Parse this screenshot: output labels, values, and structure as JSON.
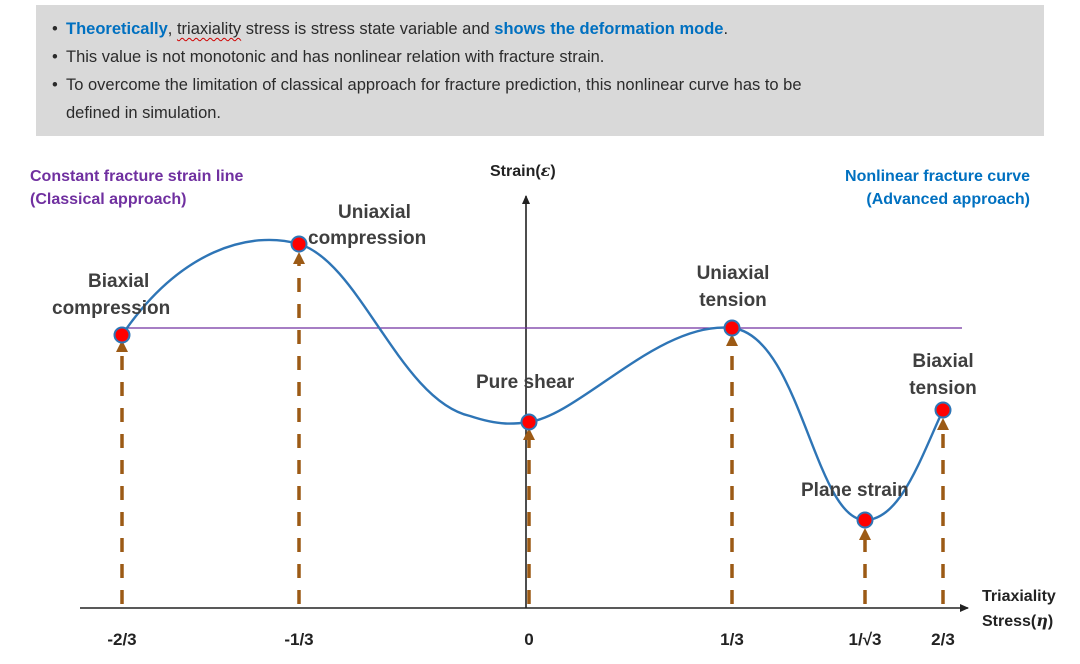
{
  "notes": {
    "b1_strong": "Theoretically",
    "b1_comma": ", ",
    "b1_misspelled": "triaxiality",
    "b1_mid": " stress is stress state variable and ",
    "b1_strong2": "shows the deformation mode",
    "b1_end": ".",
    "b2": "This value is not monotonic and has nonlinear relation with fracture strain.",
    "b3_line1": "To overcome the limitation of classical approach for fracture prediction, this nonlinear curve has to be",
    "b3_line2": "defined in simulation."
  },
  "legend": {
    "constant_line": "Constant fracture strain line",
    "classical": "(Classical approach)",
    "nonlinear_curve": "Nonlinear fracture curve",
    "advanced": "(Advanced approach)"
  },
  "axes": {
    "y_label_main": "Strain(",
    "y_label_symbol": "ε",
    "y_label_close": ")",
    "x_label_line1": "Triaxiality",
    "x_label_line2_main": "Stress(",
    "x_label_line2_symbol": "η",
    "x_label_line2_close": ")",
    "ticks": [
      "-2/3",
      "-1/3",
      "0",
      "1/3",
      "1/√3",
      "2/3"
    ]
  },
  "points": {
    "biaxial_compression_1": "Biaxial",
    "biaxial_compression_2": "compression",
    "uniaxial_compression_1": "Uniaxial",
    "uniaxial_compression_2": "compression",
    "pure_shear": "Pure shear",
    "uniaxial_tension_1": "Uniaxial",
    "uniaxial_tension_2": "tension",
    "plane_strain": "Plane strain",
    "biaxial_tension_1": "Biaxial",
    "biaxial_tension_2": "tension"
  },
  "colors": {
    "curve": "#2e75b6",
    "constant_line": "#7030a0",
    "arrow": "#9c5a15",
    "point_fill": "#ff0000"
  }
}
